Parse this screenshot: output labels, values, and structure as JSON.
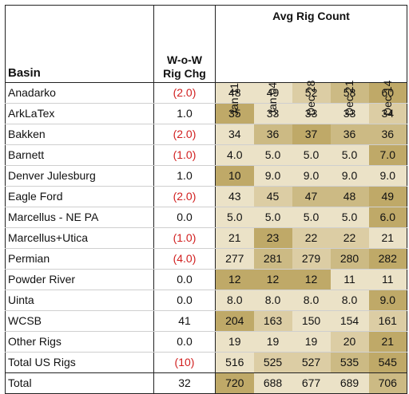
{
  "header": {
    "group_title": "Avg Rig Count",
    "basin_label": "Basin",
    "chg_label_line1": "W-o-W",
    "chg_label_line2": "Rig Chg",
    "dates": [
      "Jan 11",
      "Jan 04",
      "Dec 28",
      "Dec 21",
      "Dec 14"
    ]
  },
  "colors": {
    "heat_scale": [
      "#fbf7ec",
      "#ebe2c7",
      "#dccda4",
      "#ccba84",
      "#bfa968"
    ],
    "negative_text": "#d11f1f"
  },
  "rows": [
    {
      "basin": "Anadarko",
      "chg": "(2.0)",
      "neg": true,
      "values": [
        "48",
        "49",
        "52",
        "58",
        "60"
      ],
      "shade": [
        1,
        1,
        2,
        3,
        4
      ]
    },
    {
      "basin": "ArkLaTex",
      "chg": "1.0",
      "neg": false,
      "values": [
        "35",
        "33",
        "33",
        "33",
        "34"
      ],
      "shade": [
        4,
        1,
        1,
        1,
        2
      ]
    },
    {
      "basin": "Bakken",
      "chg": "(2.0)",
      "neg": true,
      "values": [
        "34",
        "36",
        "37",
        "36",
        "36"
      ],
      "shade": [
        1,
        3,
        4,
        3,
        3
      ]
    },
    {
      "basin": "Barnett",
      "chg": "(1.0)",
      "neg": true,
      "values": [
        "4.0",
        "5.0",
        "5.0",
        "5.0",
        "7.0"
      ],
      "shade": [
        1,
        1,
        1,
        1,
        4
      ]
    },
    {
      "basin": "Denver Julesburg",
      "chg": "1.0",
      "neg": false,
      "values": [
        "10",
        "9.0",
        "9.0",
        "9.0",
        "9.0"
      ],
      "shade": [
        4,
        1,
        1,
        1,
        1
      ]
    },
    {
      "basin": "Eagle Ford",
      "chg": "(2.0)",
      "neg": true,
      "values": [
        "43",
        "45",
        "47",
        "48",
        "49"
      ],
      "shade": [
        1,
        2,
        3,
        3,
        4
      ]
    },
    {
      "basin": "Marcellus - NE PA",
      "chg": "0.0",
      "neg": false,
      "values": [
        "5.0",
        "5.0",
        "5.0",
        "5.0",
        "6.0"
      ],
      "shade": [
        1,
        1,
        1,
        1,
        4
      ]
    },
    {
      "basin": "Marcellus+Utica",
      "chg": "(1.0)",
      "neg": true,
      "values": [
        "21",
        "23",
        "22",
        "22",
        "21"
      ],
      "shade": [
        1,
        4,
        2,
        2,
        1
      ]
    },
    {
      "basin": "Permian",
      "chg": "(4.0)",
      "neg": true,
      "values": [
        "277",
        "281",
        "279",
        "280",
        "282"
      ],
      "shade": [
        1,
        3,
        2,
        3,
        4
      ]
    },
    {
      "basin": "Powder River",
      "chg": "0.0",
      "neg": false,
      "values": [
        "12",
        "12",
        "12",
        "11",
        "11"
      ],
      "shade": [
        4,
        4,
        4,
        1,
        1
      ]
    },
    {
      "basin": "Uinta",
      "chg": "0.0",
      "neg": false,
      "values": [
        "8.0",
        "8.0",
        "8.0",
        "8.0",
        "9.0"
      ],
      "shade": [
        1,
        1,
        1,
        1,
        4
      ]
    },
    {
      "basin": "WCSB",
      "chg": "41",
      "neg": false,
      "values": [
        "204",
        "163",
        "150",
        "154",
        "161"
      ],
      "shade": [
        4,
        2,
        1,
        1,
        2
      ]
    },
    {
      "basin": "Other Rigs",
      "chg": "0.0",
      "neg": false,
      "values": [
        "19",
        "19",
        "19",
        "20",
        "21"
      ],
      "shade": [
        1,
        1,
        1,
        2,
        4
      ]
    }
  ],
  "total_us": {
    "basin": "Total US Rigs",
    "chg": "(10)",
    "neg": true,
    "values": [
      "516",
      "525",
      "527",
      "535",
      "545"
    ],
    "shade": [
      1,
      2,
      2,
      3,
      4
    ]
  },
  "total": {
    "basin": "Total",
    "chg": "32",
    "neg": false,
    "values": [
      "720",
      "688",
      "677",
      "689",
      "706"
    ],
    "shade": [
      4,
      1,
      1,
      1,
      3
    ]
  }
}
